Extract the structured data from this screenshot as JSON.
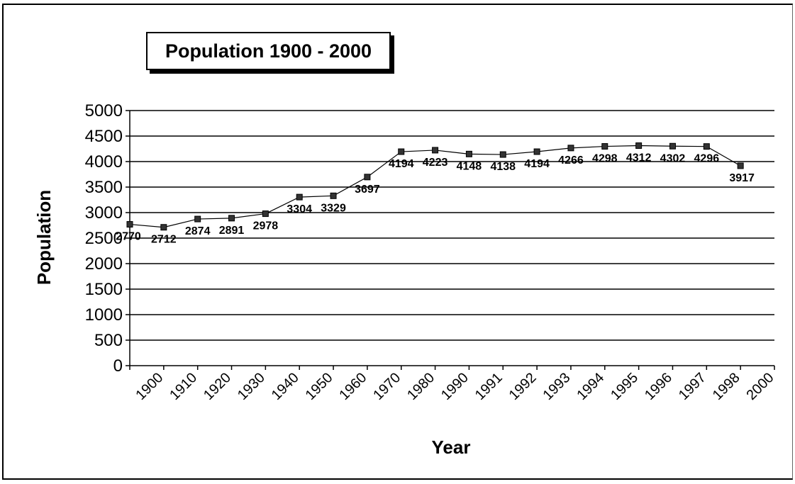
{
  "chart_data": {
    "type": "line",
    "title": "Population 1900 - 2000",
    "xlabel": "Year",
    "ylabel": "Population",
    "categories": [
      "1900",
      "1910",
      "1920",
      "1930",
      "1940",
      "1950",
      "1960",
      "1970",
      "1980",
      "1990",
      "1991",
      "1992",
      "1993",
      "1994",
      "1995",
      "1996",
      "1997",
      "1998",
      "2000"
    ],
    "series": [
      {
        "values": [
          2770,
          2712,
          2874,
          2891,
          2978,
          3304,
          3329,
          3697,
          4194,
          4223,
          4148,
          4138,
          4194,
          4266,
          4298,
          4312,
          4302,
          4296,
          3917
        ]
      }
    ],
    "ylim": [
      0,
      5000
    ],
    "yticks": [
      0,
      500,
      1000,
      1500,
      2000,
      2500,
      3000,
      3500,
      4000,
      4500,
      5000
    ],
    "grid": true,
    "legend": "none",
    "data_labels": true,
    "colors": {
      "line": "#000000",
      "marker": "#333333",
      "grid": "#000000"
    }
  }
}
